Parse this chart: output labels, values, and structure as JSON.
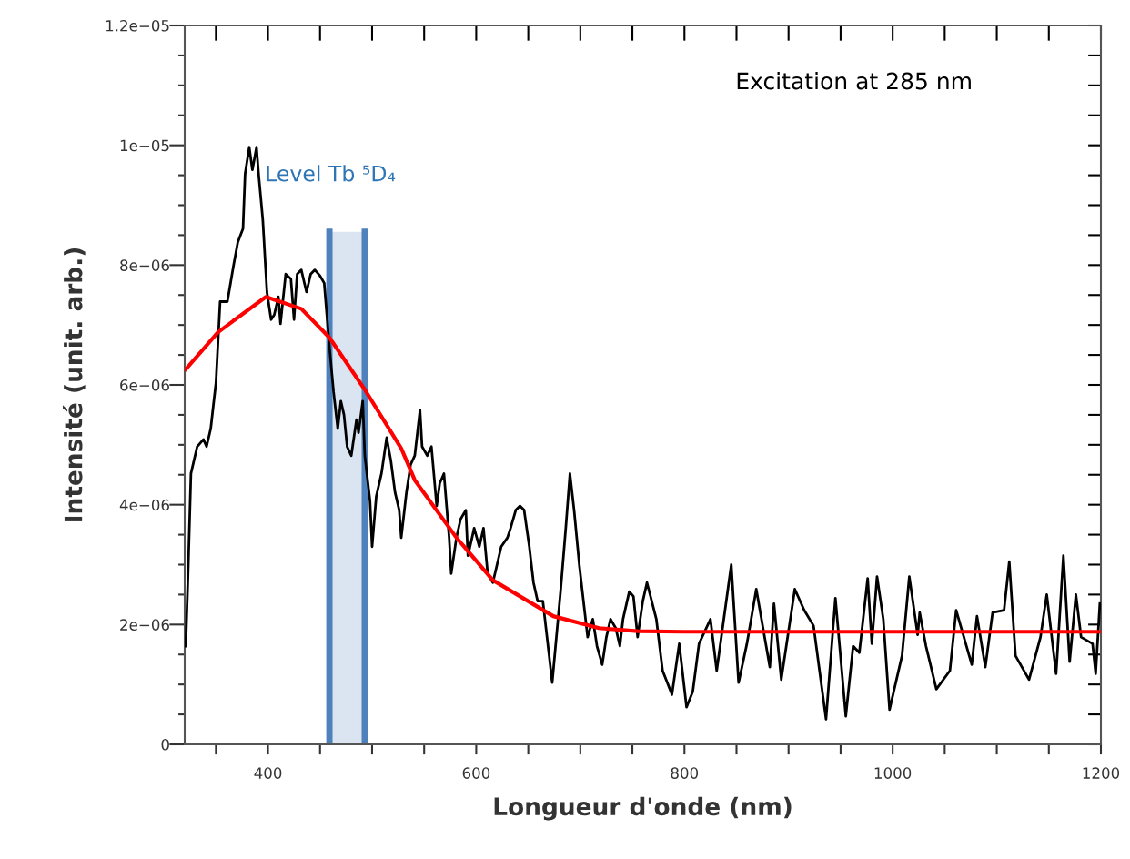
{
  "chart_data": {
    "type": "line",
    "xlabel": "Longueur d'onde (nm)",
    "ylabel": "Intensité (unit. arb.)",
    "xlim": [
      320,
      1200
    ],
    "ylim": [
      0,
      1.2e-05
    ],
    "xticks": [
      {
        "value": 350,
        "label": null
      },
      400,
      {
        "value": 450,
        "label": null
      },
      {
        "value": 500,
        "label": null
      },
      {
        "value": 550,
        "label": null
      },
      600,
      {
        "value": 650,
        "label": null
      },
      {
        "value": 700,
        "label": null
      },
      {
        "value": 750,
        "label": null
      },
      800,
      {
        "value": 850,
        "label": null
      },
      {
        "value": 900,
        "label": null
      },
      {
        "value": 950,
        "label": null
      },
      1000,
      {
        "value": 1050,
        "label": null
      },
      {
        "value": 1100,
        "label": null
      },
      {
        "value": 1150,
        "label": null
      },
      1200
    ],
    "yticks": [
      0,
      {
        "value": 5e-07,
        "label": null
      },
      {
        "value": 1e-06,
        "label": null
      },
      {
        "value": 1.5e-06,
        "label": null
      },
      {
        "value": 2e-06,
        "label": "2e−06"
      },
      {
        "value": 2.5e-06,
        "label": null
      },
      {
        "value": 3e-06,
        "label": null
      },
      {
        "value": 3.5e-06,
        "label": null
      },
      {
        "value": 4e-06,
        "label": "4e−06"
      },
      {
        "value": 4.5e-06,
        "label": null
      },
      {
        "value": 5e-06,
        "label": null
      },
      {
        "value": 5.5e-06,
        "label": null
      },
      {
        "value": 6e-06,
        "label": "6e−06"
      },
      {
        "value": 6.5e-06,
        "label": null
      },
      {
        "value": 7e-06,
        "label": null
      },
      {
        "value": 7.5e-06,
        "label": null
      },
      {
        "value": 8e-06,
        "label": "8e−06"
      },
      {
        "value": 8.5e-06,
        "label": null
      },
      {
        "value": 9e-06,
        "label": null
      },
      {
        "value": 9.5e-06,
        "label": null
      },
      {
        "value": 1e-05,
        "label": "1e−05"
      },
      {
        "value": 1.05e-05,
        "label": null
      },
      {
        "value": 1.1e-05,
        "label": null
      },
      {
        "value": 1.15e-05,
        "label": null
      },
      {
        "value": 1.2e-05,
        "label": "1.2e−05"
      }
    ],
    "marker": "none",
    "line_style": "solid",
    "series": [
      {
        "color": "#000000",
        "x": [
          321,
          323,
          326,
          332,
          338,
          341,
          345,
          348,
          350,
          354,
          361,
          367,
          371,
          376,
          378,
          382,
          385,
          389,
          391,
          395,
          399,
          403,
          406,
          410,
          412,
          417,
          422,
          425,
          428,
          432,
          437,
          441,
          445,
          450,
          454,
          459,
          463,
          467,
          470,
          473,
          476,
          480,
          485,
          487,
          491,
          493,
          498,
          500,
          504,
          509,
          514,
          518,
          522,
          526,
          528,
          533,
          537,
          541,
          546,
          548,
          553,
          557,
          562,
          565,
          569,
          574,
          576,
          581,
          585,
          590,
          592,
          596,
          598,
          603,
          607,
          611,
          616,
          620,
          624,
          630,
          633,
          638,
          642,
          646,
          651,
          655,
          659,
          664,
          668,
          673,
          677,
          681,
          686,
          690,
          694,
          699,
          703,
          707,
          712,
          716,
          721,
          725,
          729,
          734,
          738,
          741,
          747,
          751,
          755,
          760,
          764,
          773,
          779,
          788,
          795,
          802,
          808,
          814,
          825,
          831,
          845,
          852,
          860,
          869,
          882,
          886,
          893,
          906,
          915,
          924,
          936,
          945,
          955,
          962,
          968,
          976,
          980,
          985,
          991,
          997,
          1009,
          1016,
          1024,
          1026,
          1032,
          1042,
          1055,
          1061,
          1076,
          1081,
          1089,
          1096,
          1107,
          1112,
          1118,
          1131,
          1142,
          1148,
          1157,
          1164,
          1170,
          1176,
          1181,
          1192,
          1195,
          1199
        ],
        "values": [
          1.64e-06,
          2.7e-06,
          4.52e-06,
          4.97e-06,
          5.09e-06,
          4.97e-06,
          5.27e-06,
          5.73e-06,
          6.03e-06,
          7.39e-06,
          7.39e-06,
          8e-06,
          8.38e-06,
          8.61e-06,
          9.52e-06,
          9.97e-06,
          9.59e-06,
          9.97e-06,
          9.52e-06,
          8.76e-06,
          7.55e-06,
          7.09e-06,
          7.17e-06,
          7.47e-06,
          7.02e-06,
          7.85e-06,
          7.77e-06,
          7.09e-06,
          7.85e-06,
          7.92e-06,
          7.55e-06,
          7.85e-06,
          7.92e-06,
          7.82e-06,
          7.7e-06,
          6.64e-06,
          5.88e-06,
          5.27e-06,
          5.73e-06,
          5.5e-06,
          4.97e-06,
          4.82e-06,
          5.42e-06,
          5.2e-06,
          5.73e-06,
          4.82e-06,
          4.06e-06,
          3.3e-06,
          4.14e-06,
          4.52e-06,
          5.12e-06,
          4.74e-06,
          4.21e-06,
          3.91e-06,
          3.45e-06,
          4.21e-06,
          4.67e-06,
          4.82e-06,
          5.58e-06,
          4.97e-06,
          4.82e-06,
          4.97e-06,
          3.98e-06,
          4.36e-06,
          4.52e-06,
          3.45e-06,
          2.85e-06,
          3.45e-06,
          3.76e-06,
          3.91e-06,
          3.15e-06,
          3.45e-06,
          3.61e-06,
          3.3e-06,
          3.61e-06,
          2.85e-06,
          2.7e-06,
          3e-06,
          3.3e-06,
          3.45e-06,
          3.61e-06,
          3.91e-06,
          3.98e-06,
          3.91e-06,
          3.3e-06,
          2.7e-06,
          2.39e-06,
          2.39e-06,
          1.79e-06,
          1.03e-06,
          1.79e-06,
          2.55e-06,
          3.61e-06,
          4.52e-06,
          3.91e-06,
          3e-06,
          2.39e-06,
          1.79e-06,
          2.09e-06,
          1.64e-06,
          1.33e-06,
          1.79e-06,
          2.09e-06,
          1.94e-06,
          1.64e-06,
          2.09e-06,
          2.55e-06,
          2.47e-06,
          1.79e-06,
          2.39e-06,
          2.7e-06,
          2.09e-06,
          1.23e-06,
          8.3e-07,
          1.68e-06,
          6.2e-07,
          8.8e-07,
          1.68e-06,
          2.09e-06,
          1.23e-06,
          3e-06,
          1.03e-06,
          1.68e-06,
          2.59e-06,
          1.29e-06,
          2.35e-06,
          1.08e-06,
          2.59e-06,
          2.24e-06,
          1.98e-06,
          4.2e-07,
          2.44e-06,
          4.7e-07,
          1.64e-06,
          1.53e-06,
          2.77e-06,
          1.68e-06,
          2.8e-06,
          2.09e-06,
          5.8e-07,
          1.48e-06,
          2.8e-06,
          1.83e-06,
          2.2e-06,
          1.64e-06,
          9.2e-07,
          1.23e-06,
          2.24e-06,
          1.33e-06,
          2.14e-06,
          1.29e-06,
          2.2e-06,
          2.24e-06,
          3.05e-06,
          1.48e-06,
          1.08e-06,
          1.79e-06,
          2.5e-06,
          1.18e-06,
          3.15e-06,
          1.38e-06,
          2.5e-06,
          1.79e-06,
          1.68e-06,
          1.18e-06,
          2.35e-06
        ]
      },
      {
        "type": "line",
        "color": "#ff0000",
        "x": [
          321,
          352,
          398,
          432,
          459,
          493,
          528,
          541,
          581,
          616,
          674,
          718,
          755,
          800,
          1200
        ],
        "values": [
          6.26e-06,
          6.88e-06,
          7.47e-06,
          7.27e-06,
          6.79e-06,
          5.92e-06,
          4.94e-06,
          4.41e-06,
          3.45e-06,
          2.74e-06,
          2.14e-06,
          1.94e-06,
          1.89e-06,
          1.88e-06,
          1.88e-06
        ]
      }
    ],
    "bands": [
      {
        "axis": "x",
        "from": 459,
        "to": 493,
        "label": "Level Tb ⁵D₄",
        "color": "#dbe5f1"
      }
    ],
    "ref_lines": [
      {
        "axis": "x",
        "value": 459,
        "color": "#4f81bd"
      },
      {
        "axis": "x",
        "value": 493,
        "color": "#4f81bd"
      }
    ],
    "annotations": [
      "Excitation at 285 nm"
    ]
  }
}
